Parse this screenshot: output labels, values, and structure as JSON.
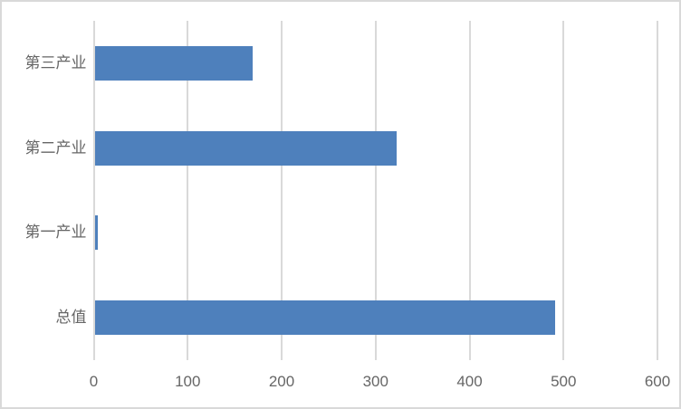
{
  "chart_data": {
    "type": "bar",
    "orientation": "horizontal",
    "title": "",
    "xlabel": "",
    "ylabel": "",
    "categories": [
      "第三产业",
      "第二产业",
      "第一产业",
      "总值"
    ],
    "values": [
      168,
      321,
      3,
      490
    ],
    "xlim": [
      0,
      600
    ],
    "x_ticks": [
      "0",
      "100",
      "200",
      "300",
      "400",
      "500",
      "600"
    ],
    "grid": "vertical-only",
    "legend": "none",
    "colors": {
      "bar": "#4e80bc",
      "gridline": "#d9d9d9",
      "axis_line": "#d9d9d9",
      "text": "#666666",
      "chart_border": "#d9d9d9",
      "background": "#ffffff"
    }
  }
}
